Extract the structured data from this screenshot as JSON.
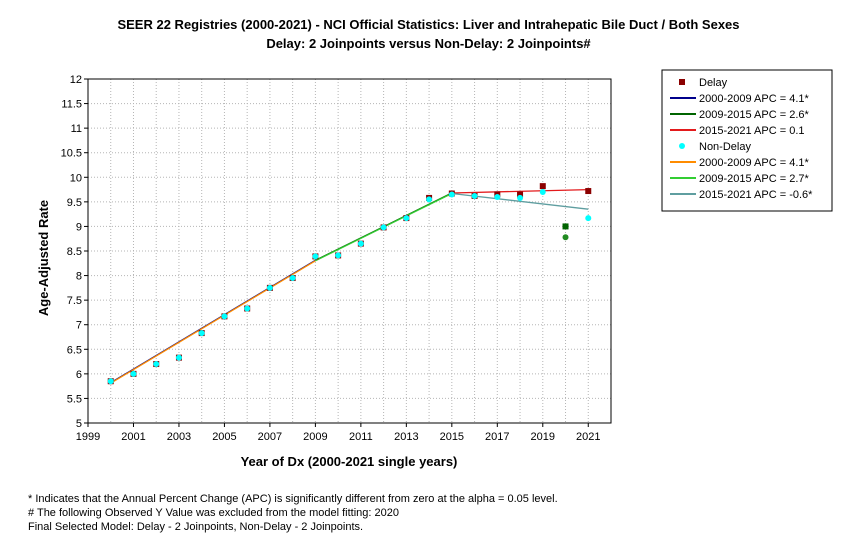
{
  "chart_data": {
    "type": "scatter",
    "title": "SEER 22 Registries (2000-2021) - NCI Official Statistics: Liver and Intrahepatic Bile Duct / Both Sexes",
    "subtitle": "Delay: 2 Joinpoints  versus  Non-Delay: 2 Joinpoints#",
    "xlabel": "Year of Dx (2000-2021 single years)",
    "ylabel": "Age-Adjusted Rate",
    "xlim": [
      1999,
      2022
    ],
    "ylim": [
      5,
      12
    ],
    "xticks": [
      1999,
      2001,
      2003,
      2005,
      2007,
      2009,
      2011,
      2013,
      2015,
      2017,
      2019,
      2021
    ],
    "yticks": [
      5,
      5.5,
      6,
      6.5,
      7,
      7.5,
      8,
      8.5,
      9,
      9.5,
      10,
      10.5,
      11,
      11.5,
      12
    ],
    "grid": true,
    "legend_position": "right",
    "series": [
      {
        "name": "Delay",
        "kind": "points",
        "marker": "square",
        "color": "#8b0000",
        "x": [
          2000,
          2001,
          2002,
          2003,
          2004,
          2005,
          2006,
          2007,
          2008,
          2009,
          2010,
          2011,
          2012,
          2013,
          2014,
          2015,
          2016,
          2017,
          2018,
          2019,
          2020,
          2021
        ],
        "y": [
          5.85,
          6.0,
          6.2,
          6.33,
          6.83,
          7.17,
          7.33,
          7.75,
          7.95,
          8.39,
          8.41,
          8.65,
          8.98,
          9.17,
          9.58,
          9.67,
          9.62,
          9.65,
          9.65,
          9.82,
          9.0,
          9.72
        ]
      },
      {
        "name": "2000-2009 APC  = 4.1*",
        "kind": "line",
        "color": "#00008b",
        "x": [
          2000,
          2009
        ],
        "y": [
          5.82,
          8.31
        ]
      },
      {
        "name": "2009-2015 APC  = 2.6*",
        "kind": "line",
        "color": "#006400",
        "x": [
          2009,
          2015
        ],
        "y": [
          8.31,
          9.68
        ]
      },
      {
        "name": "2015-2021 APC  = 0.1",
        "kind": "line",
        "color": "#e31a1c",
        "x": [
          2015,
          2021
        ],
        "y": [
          9.68,
          9.75
        ]
      },
      {
        "name": "Non-Delay",
        "kind": "points",
        "marker": "circle",
        "color": "#00ffff",
        "x": [
          2000,
          2001,
          2002,
          2003,
          2004,
          2005,
          2006,
          2007,
          2008,
          2009,
          2010,
          2011,
          2012,
          2013,
          2014,
          2015,
          2016,
          2017,
          2018,
          2019,
          2020,
          2021
        ],
        "y": [
          5.85,
          6.0,
          6.2,
          6.33,
          6.83,
          7.17,
          7.33,
          7.75,
          7.95,
          8.39,
          8.41,
          8.65,
          8.98,
          9.17,
          9.55,
          9.65,
          9.62,
          9.6,
          9.58,
          9.7,
          8.78,
          9.17
        ]
      },
      {
        "name": "2000-2009 APC  =  4.1*",
        "kind": "line",
        "color": "#ff8c00",
        "x": [
          2000,
          2009
        ],
        "y": [
          5.81,
          8.3
        ]
      },
      {
        "name": "2009-2015 APC  = 2.7*",
        "kind": "line",
        "color": "#32cd32",
        "x": [
          2009,
          2015
        ],
        "y": [
          8.3,
          9.67
        ]
      },
      {
        "name": "2015-2021 APC  = -0.6*",
        "kind": "line",
        "color": "#5f9ea0",
        "x": [
          2015,
          2021
        ],
        "y": [
          9.67,
          9.35
        ]
      }
    ],
    "excluded_points": {
      "x": 2020,
      "delay_y": 9.0,
      "nondelay_y": 8.78,
      "delay_color": "#006400",
      "nondelay_color": "#228b22"
    },
    "footnotes": [
      "* Indicates that the Annual Percent Change (APC) is significantly different from zero at the alpha = 0.05 level.",
      " # The following Observed Y Value was excluded from the model fitting: 2020",
      "Final Selected Model: Delay - 2 Joinpoints, Non-Delay - 2 Joinpoints."
    ]
  }
}
